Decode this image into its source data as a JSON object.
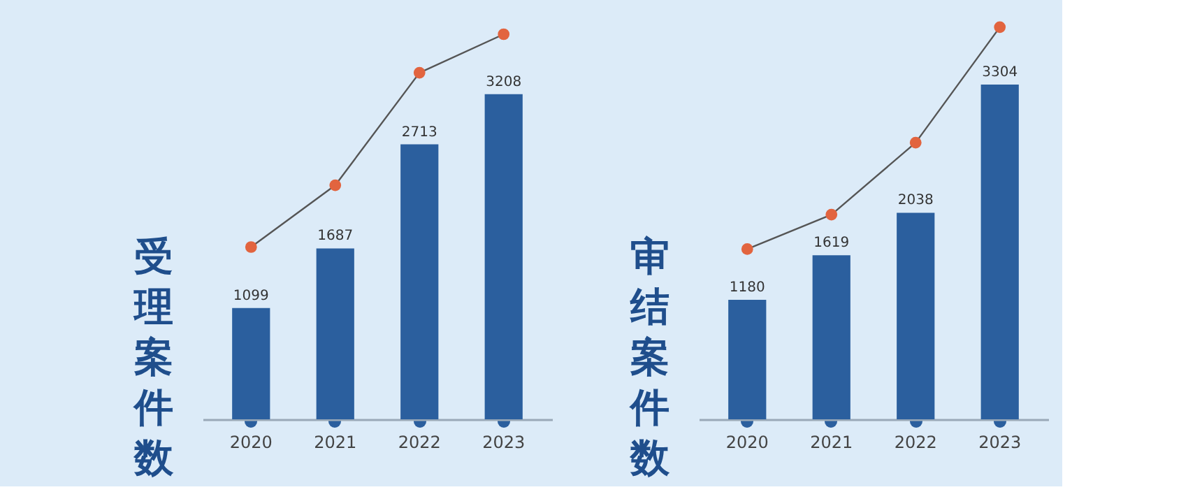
{
  "chart_data": [
    {
      "type": "bar",
      "title": "受理案件数",
      "categories": [
        "2020",
        "2021",
        "2022",
        "2023"
      ],
      "tick_labels": "x",
      "grid": false,
      "series": [
        {
          "color": "#2b5f9e",
          "values": [
            1099,
            1687,
            2713,
            3208
          ],
          "value_labels": [
            "1099",
            "1687",
            "2713",
            "3208"
          ]
        },
        {
          "type": "line",
          "color": "#e2643f",
          "marker": "circle",
          "values": [
            1700,
            2310,
            3420,
            3800
          ]
        }
      ]
    },
    {
      "type": "bar",
      "title": "审结案件数",
      "categories": [
        "2020",
        "2021",
        "2022",
        "2023"
      ],
      "tick_labels": "x",
      "grid": false,
      "series": [
        {
          "color": "#2b5f9e",
          "values": [
            1180,
            1619,
            2038,
            3304
          ],
          "value_labels": [
            "1180",
            "1619",
            "2038",
            "3304"
          ]
        },
        {
          "type": "line",
          "color": "#e2643f",
          "marker": "circle",
          "values": [
            1680,
            2020,
            2730,
            3870
          ]
        }
      ]
    }
  ]
}
